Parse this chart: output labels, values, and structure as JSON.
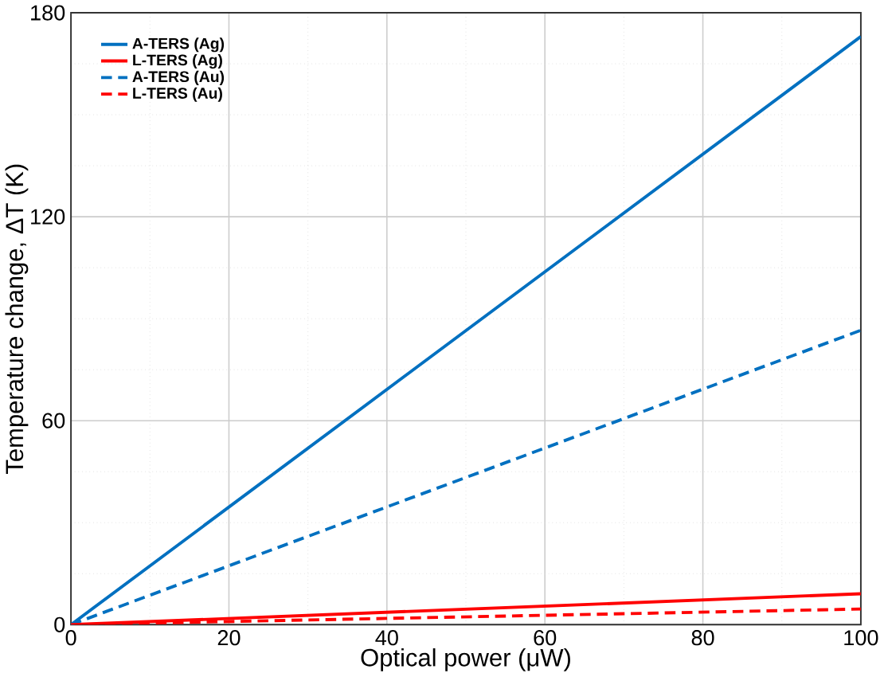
{
  "chart_data": {
    "type": "line",
    "xlabel": "Optical power (μW)",
    "ylabel": "Temperature change, ΔT (K)",
    "x": [
      0,
      100
    ],
    "series": [
      {
        "name": "A-TERS (Ag)",
        "color": "#0070c0",
        "values": [
          0,
          173
        ],
        "line_style": "solid"
      },
      {
        "name": "L-TERS (Ag)",
        "color": "#ff0000",
        "values": [
          0,
          9.1
        ],
        "line_style": "solid"
      },
      {
        "name": "A-TERS (Au)",
        "color": "#0070c0",
        "values": [
          0,
          86.6
        ],
        "line_style": "dashed"
      },
      {
        "name": "L-TERS (Au)",
        "color": "#ff0000",
        "values": [
          0,
          4.6
        ],
        "line_style": "dashed"
      }
    ],
    "xlim": [
      0,
      100
    ],
    "ylim": [
      0,
      180
    ],
    "xticks": [
      0,
      20,
      40,
      60,
      80,
      100
    ],
    "yticks": [
      0,
      60,
      120,
      180
    ],
    "grid": true,
    "legend": "top left",
    "marker": "none"
  }
}
